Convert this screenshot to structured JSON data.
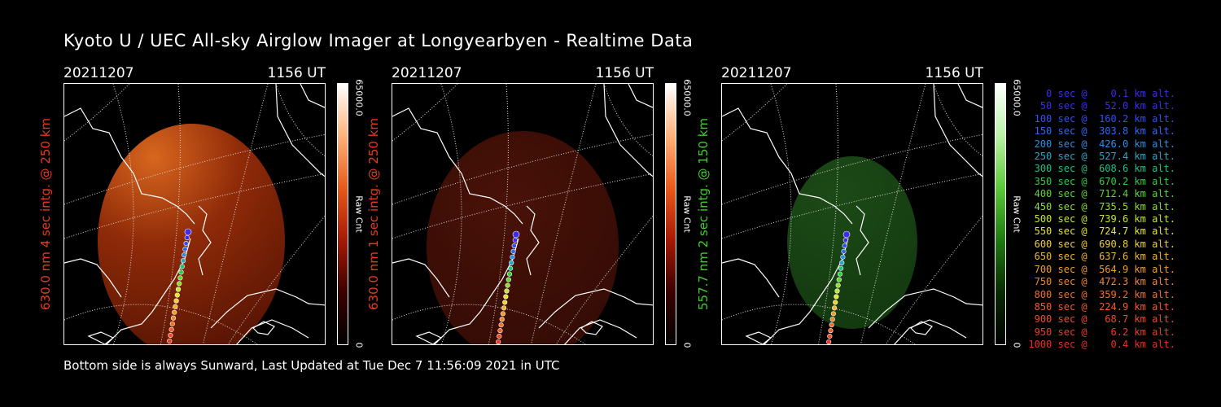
{
  "title": "Kyoto U / UEC All-sky Airglow Imager at Longyearbyen - Realtime Data",
  "footer": "Bottom side is always Sunward, Last Updated at Tue Dec  7 11:56:09 2021 in UTC",
  "panels": [
    {
      "date": "20211207",
      "time": "1156 UT",
      "ylabel": "630.0 nm 4 sec intg. @ 250 km",
      "label_color": "#e83a1e",
      "colorbar_max": "65000.0",
      "colorbar_min": "0",
      "colorbar_unit": "Raw Cnt",
      "colorbar_gradient": [
        "#ffffff",
        "#ffb27a",
        "#e85a1a",
        "#a51a05",
        "#3a0000",
        "#000000"
      ],
      "image_colors": [
        "#d8661e",
        "#8e2a08",
        "#5c1604"
      ]
    },
    {
      "date": "20211207",
      "time": "1156 UT",
      "ylabel": "630.0 nm 1 sec intg. @ 250 km",
      "label_color": "#e83a1e",
      "colorbar_max": "65000.0",
      "colorbar_min": "0",
      "colorbar_unit": "Raw Cnt",
      "colorbar_gradient": [
        "#ffffff",
        "#ffb27a",
        "#e85a1a",
        "#a51a05",
        "#3a0000",
        "#000000"
      ],
      "image_colors": [
        "#4a1208",
        "#3c0e06",
        "#300b05"
      ]
    },
    {
      "date": "20211207",
      "time": "1156 UT",
      "ylabel": "557.7 nm 2 sec intg. @ 150 km",
      "label_color": "#3fcf2a",
      "colorbar_max": "65000.0",
      "colorbar_min": "0",
      "colorbar_unit": "Raw Cnt",
      "colorbar_gradient": [
        "#ffffff",
        "#b9f3a6",
        "#5bc83a",
        "#1f7a10",
        "#0a2a04",
        "#000000"
      ],
      "image_colors": [
        "#1c4a16",
        "#163e12",
        "#10320d"
      ]
    }
  ],
  "legend": [
    {
      "text": "   0 sec @    0.1 km alt.",
      "color": "#3b2cf0"
    },
    {
      "text": "  50 sec @   52.0 km alt.",
      "color": "#3b2cf0"
    },
    {
      "text": " 100 sec @  160.2 km alt.",
      "color": "#3050f5"
    },
    {
      "text": " 150 sec @  303.8 km alt.",
      "color": "#2f6af0"
    },
    {
      "text": " 200 sec @  426.0 km alt.",
      "color": "#2c8ee6"
    },
    {
      "text": " 250 sec @  527.4 km alt.",
      "color": "#26a8c8"
    },
    {
      "text": " 300 sec @  608.6 km alt.",
      "color": "#1fc08a"
    },
    {
      "text": " 350 sec @  670.2 km alt.",
      "color": "#2ccf40"
    },
    {
      "text": " 400 sec @  712.4 km alt.",
      "color": "#5cd62a"
    },
    {
      "text": " 450 sec @  735.5 km alt.",
      "color": "#8ede2a"
    },
    {
      "text": " 500 sec @  739.6 km alt.",
      "color": "#c2e62a"
    },
    {
      "text": " 550 sec @  724.7 km alt.",
      "color": "#e6e62a"
    },
    {
      "text": " 600 sec @  690.8 km alt.",
      "color": "#f0d02a"
    },
    {
      "text": " 650 sec @  637.6 km alt.",
      "color": "#f0b42a"
    },
    {
      "text": " 700 sec @  564.9 km alt.",
      "color": "#f09c2a"
    },
    {
      "text": " 750 sec @  472.3 km alt.",
      "color": "#f0862a"
    },
    {
      "text": " 800 sec @  359.2 km alt.",
      "color": "#f0702a"
    },
    {
      "text": " 850 sec @  224.9 km alt.",
      "color": "#f05c2a"
    },
    {
      "text": " 900 sec @   68.7 km alt.",
      "color": "#f04a2a"
    },
    {
      "text": " 950 sec @    6.2 km alt.",
      "color": "#f03a28"
    },
    {
      "text": "1000 sec @    0.4 km alt.",
      "color": "#f02a24"
    }
  ]
}
